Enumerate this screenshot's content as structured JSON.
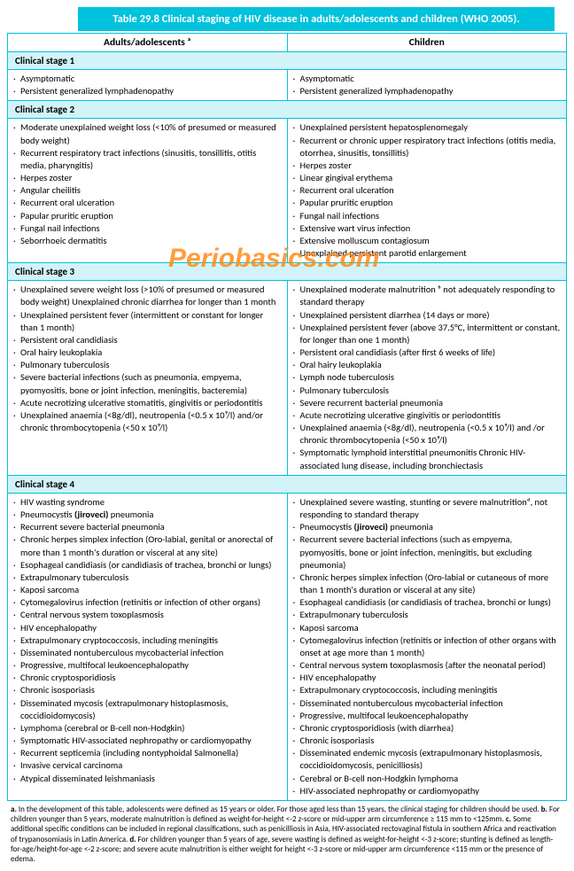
{
  "title": "Table 29.8 Clinical staging of HIV disease in adults/adolescents and children (WHO 2005).",
  "col1": "Adults/adolescents ᵃ",
  "col2": "Children",
  "watermark": "Periobasics.com",
  "stages": {
    "s1": "Clinical stage 1",
    "s2": "Clinical stage 2",
    "s3": "Clinical stage 3",
    "s4": "Clinical stage 4"
  },
  "s1a": [
    "Asymptomatic",
    "Persistent generalized lymphadenopathy"
  ],
  "s1c": [
    "Asymptomatic",
    "Persistent generalized lymphadenopathy"
  ],
  "s2a": [
    "Moderate unexplained weight loss (<10% of presumed or measured body weight)",
    "Recurrent respiratory tract infections (sinusitis, tonsillitis, otitis media, pharyngitis)",
    "Herpes zoster",
    "Angular cheilitis",
    "Recurrent oral ulceration",
    "Papular pruritic eruption",
    "Fungal nail infections",
    "Seborrhoeic dermatitis"
  ],
  "s2c": [
    "Unexplained persistent hepatosplenomegaly",
    "Recurrent or chronic upper respiratory tract infections (otitis media, otorrhea, sinusitis, tonsillitis)",
    "Herpes zoster",
    "Linear gingival erythema",
    "Recurrent oral ulceration",
    "Papular pruritic eruption",
    "Fungal nail infections",
    "Extensive wart virus infection",
    "Extensive molluscum contagiosum",
    "Unexplained persistent parotid enlargement"
  ],
  "s3a": [
    "Unexplained severe weight loss (>10% of presumed or measured body weight) Unexplained chronic diarrhea for longer than 1 month",
    "Unexplained persistent fever (intermittent or constant for longer than 1 month)",
    "Persistent oral candidiasis",
    "Oral hairy leukoplakia",
    "Pulmonary tuberculosis",
    "Severe bacterial infections (such as pneumonia, empyema, pyomyositis, bone or joint infection, meningitis, bacteremia)",
    "Acute necrotizing ulcerative stomatitis, gingivitis or periodontitis",
    "Unexplained anaemia (<8g/dl), neutropenia (<0.5 x 10⁹/l) and/or chronic thrombocytopenia (<50 x 10⁹/l)"
  ],
  "s3c": [
    "Unexplained moderate malnutrition ᵇ not adequately responding to standard therapy",
    "Unexplained persistent diarrhea (14 days or more)",
    "Unexplained persistent fever (above 37.5°C, intermittent or constant, for longer than one 1 month)",
    "Persistent oral candidiasis (after first 6 weeks of life)",
    "Oral hairy leukoplakia",
    "Lymph node tuberculosis",
    "Pulmonary tuberculosis",
    "Severe recurrent bacterial pneumonia",
    "Acute necrotizing ulcerative gingivitis or periodontitis",
    "Unexplained anaemia (<8g/dl), neutropenia (<0.5 x 10⁹/l) and /or chronic thrombocytopenia (<50 x 10⁹/l)",
    "Symptomatic lymphoid interstitial pneumonitis Chronic HIV-associated lung disease, including bronchiectasis"
  ],
  "s4a": [
    "HIV wasting syndrome",
    "Pneumocystis (jiroveci) pneumonia",
    "Recurrent severe bacterial pneumonia",
    "Chronic herpes simplex infection (Oro-labial, genital or anorectal of more than 1 month's duration or visceral at any site)",
    "Esophageal candidiasis (or candidiasis of trachea, bronchi or lungs)",
    "Extrapulmonary tuberculosis",
    "Kaposi sarcoma",
    "Cytomegalovirus infection (retinitis or infection of other organs)",
    "Central nervous system toxoplasmosis",
    "HIV encephalopathy",
    "Extrapulmonary cryptococcosis, including meningitis",
    "Disseminated nontuberculous mycobacterial infection",
    "Progressive, multifocal leukoencephalopathy",
    "Chronic cryptosporidiosis",
    "Chronic isosporiasis",
    "Disseminated mycosis (extrapulmonary histoplasmosis, coccidioidomycosis)",
    "Lymphoma (cerebral or B-cell non-Hodgkin)",
    "Symptomatic HIV-associated nephropathy or cardiomyopathy",
    "Recurrent septicemia (including nontyphoidal Salmonella)",
    "Invasive cervical carcinoma",
    "Atypical disseminated leishmaniasis"
  ],
  "s4c": [
    "Unexplained severe wasting, stunting or severe malnutritionᵈ, not responding to standard therapy",
    "Pneumocystis (jiroveci) pneumonia",
    "Recurrent severe bacterial infections (such as empyema, pyomyositis, bone or joint infection, meningitis, but excluding pneumonia)",
    "Chronic herpes simplex infection (Oro-labial or cutaneous of more than 1 month's duration or visceral at any site)",
    "Esophageal candidiasis (or candidiasis of trachea, bronchi or lungs)",
    "Extrapulmonary tuberculosis",
    "Kaposi sarcoma",
    "Cytomegalovirus infection (retinitis or infection of other organs with onset at age more than 1 month)",
    "Central nervous system toxoplasmosis (after the neonatal period)",
    "HIV encephalopathy",
    "Extrapulmonary cryptococcosis, including meningitis",
    "Disseminated nontuberculous mycobacterial infection",
    "Progressive, multifocal leukoencephalopathy",
    "Chronic cryptosporidiosis (with diarrhea)",
    "Chronic isosporiasis",
    "Disseminated endemic mycosis (extrapulmonary histoplasmosis, coccidioidomycosis, penicilliosis)",
    "Cerebral or B-cell non-Hodgkin lymphoma",
    "HIV-associated nephropathy or cardiomyopathy"
  ],
  "footnote": "a. In the development of this table, adolescents were defined as 15 years or older. For those aged less than 15 years, the clinical staging for children should be used. b. For children younger than 5 years, moderate malnutrition is defined as weight-for-height <-2 z-score or mid-upper arm circumference ≥ 115 mm to <125mm. c. Some additional specific conditions can be included in regional classifications, such as penicilliosis in Asia, HIV-associated rectovaginal fistula in southern Africa and reactivation of trypanosomiasis in Latin America. d. For children younger than 5 years of age, severe wasting is defined as weight-for-height <-3 z-score; stunting is defined as length-for-age/height-for-age <-2 z-score; and severe acute malnutrition is either weight for height <-3 z-score or mid-upper arm circumference <115 mm or the presence of edema."
}
